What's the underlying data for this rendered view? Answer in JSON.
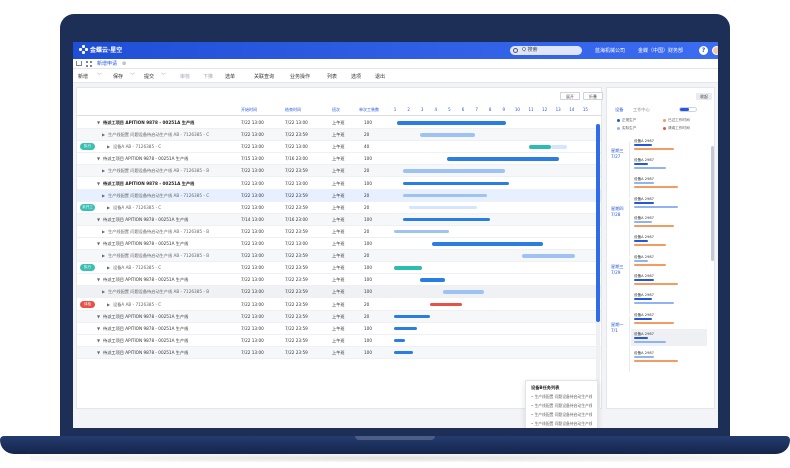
{
  "topbar": {
    "logo_text": "金蝶云·星空",
    "search_placeholder": "Q 搜索",
    "org": "蓝海机械公司",
    "user": "金蝶（中国）财务部",
    "help": "?"
  },
  "tabs": {
    "current": "新增申请"
  },
  "toolbar": {
    "items": [
      "新增",
      "保存",
      "提交",
      "审核",
      "下推",
      "选单",
      "关联查询",
      "业务操作",
      "列表",
      "选项",
      "退出"
    ]
  },
  "panel": {
    "btn_left": "展开",
    "btn_right": "折叠",
    "headers": {
      "start": "开始时间",
      "end": "结束时间",
      "shift": "班次",
      "hours": "单次工装数"
    },
    "days": [
      "1",
      "2",
      "3",
      "4",
      "5",
      "6",
      "7",
      "8",
      "9",
      "10",
      "11",
      "12",
      "13",
      "14",
      "15"
    ],
    "rows": [
      {
        "tag": "",
        "arrow": "▼",
        "name": "待派工项目 APITION 9878 - 00251A 生产线",
        "bold": true,
        "start": "7/22  13:00",
        "end": "7/22  13:00",
        "shift": "上午班",
        "hours": "100",
        "alt": false
      },
      {
        "tag": "",
        "arrow": "▶",
        "name": "生产线配置 问题设备待启动生产线 AB - 7126385 - C",
        "bold": false,
        "start": "7/22  13:00",
        "end": "7/22  23:59",
        "shift": "上午班",
        "hours": "20",
        "alt": true
      },
      {
        "tag": "执行",
        "arrow": "▶",
        "name": "设备A AB - 7126385 - C",
        "bold": false,
        "start": "7/22  13:00",
        "end": "7/22  13:00",
        "shift": "上午班",
        "hours": "40",
        "alt": false
      },
      {
        "tag": "",
        "arrow": "▼",
        "name": "待派工项目 APITION 9878 - 00251A 生产线",
        "bold": false,
        "start": "7/15  13:00",
        "end": "7/16  23:00",
        "shift": "上午班",
        "hours": "100",
        "alt": false
      },
      {
        "tag": "",
        "arrow": "▶",
        "name": "生产线配置 问题设备待启动生产线 AB - 7126385 - B",
        "bold": false,
        "start": "7/22  13:00",
        "end": "7/22  23:59",
        "shift": "上午班",
        "hours": "20",
        "alt": true
      },
      {
        "tag": "",
        "arrow": "▼",
        "name": "待派工项目 APITION 9878 - 00251A 生产线",
        "bold": true,
        "start": "7/22  13:00",
        "end": "7/22  13:00",
        "shift": "上午班",
        "hours": "100",
        "alt": false
      },
      {
        "tag": "",
        "arrow": "▶",
        "name": "生产线配置 问题设备待启动生产线 AB - 7126385 - C",
        "bold": false,
        "start": "7/22  13:00",
        "end": "7/22  23:59",
        "shift": "上午班",
        "hours": "20",
        "sel": true
      },
      {
        "tag": "未开工",
        "arrow": "▶",
        "name": "设备A AB - 7126385 - C",
        "bold": false,
        "start": "7/22  13:00",
        "end": "7/22  23:59",
        "shift": "上午班",
        "hours": "20",
        "alt": false
      },
      {
        "tag": "",
        "arrow": "▼",
        "name": "待派工项目 APITION 9878 - 00251A 生产线",
        "bold": false,
        "start": "7/14  13:00",
        "end": "7/16  23:00",
        "shift": "上午班",
        "hours": "100",
        "alt": true
      },
      {
        "tag": "",
        "arrow": "▶",
        "name": "生产线配置 问题设备待启动生产线 AB - 7126385 - B",
        "bold": false,
        "start": "7/22  13:00",
        "end": "7/22  23:59",
        "shift": "上午班",
        "hours": "20",
        "alt": false
      },
      {
        "tag": "",
        "arrow": "▼",
        "name": "待派工项目 APITION 9878 - 00251A 生产线",
        "bold": false,
        "start": "7/22  13:00",
        "end": "7/22  13:00",
        "shift": "上午班",
        "hours": "100",
        "alt": false
      },
      {
        "tag": "",
        "arrow": "▶",
        "name": "生产线配置 问题设备待启动生产线 AB - 7126385 - B",
        "bold": false,
        "start": "7/22  13:00",
        "end": "7/22  23:59",
        "shift": "上午班",
        "hours": "20",
        "alt": true
      },
      {
        "tag": "执行",
        "arrow": "▶",
        "name": "设备A AB - 7126385 - C",
        "bold": false,
        "start": "7/22  13:00",
        "end": "7/22  23:59",
        "shift": "上午班",
        "hours": "100",
        "alt": false
      },
      {
        "tag": "",
        "arrow": "▼",
        "name": "待派工项目 APITION 9878 - 00251A 生产线",
        "bold": false,
        "start": "7/22  13:00",
        "end": "7/22  23:59",
        "shift": "上午班",
        "hours": "100",
        "alt": false
      },
      {
        "tag": "",
        "arrow": "▶",
        "name": "生产线配置 问题设备待启动生产线 AB - 7126385 - B",
        "bold": false,
        "start": "7/22  13:00",
        "end": "7/22  23:59",
        "shift": "上午班",
        "hours": "100",
        "gray": true
      },
      {
        "tag": "待检",
        "arrow": "▶",
        "name": "设备A AB - 7126385 - C",
        "bold": false,
        "start": "7/22  13:00",
        "end": "7/22  23:59",
        "shift": "上午班",
        "hours": "20",
        "alt": false
      },
      {
        "tag": "",
        "arrow": "▼",
        "name": "待派工项目 APITION 9878 - 00251A 生产线",
        "bold": false,
        "start": "7/22  13:00",
        "end": "7/22  23:59",
        "shift": "上午班",
        "hours": "20",
        "alt": true
      },
      {
        "tag": "",
        "arrow": "▼",
        "name": "待派工项目 APITION 9878 - 00251A 生产线",
        "bold": false,
        "start": "7/22  13:00",
        "end": "7/22  23:59",
        "shift": "上午班",
        "hours": "100",
        "alt": false
      },
      {
        "tag": "",
        "arrow": "▼",
        "name": "待派工项目 APITION 9878 - 00251A 生产线",
        "bold": false,
        "start": "7/22  13:00",
        "end": "7/22  23:59",
        "shift": "上午班",
        "hours": "100",
        "alt": false
      },
      {
        "tag": "",
        "arrow": "▼",
        "name": "待派工项目 APITION 9878 - 00251A 生产线",
        "bold": false,
        "start": "7/22  13:00",
        "end": "7/22  23:59",
        "shift": "上午班",
        "hours": "100",
        "alt": true
      }
    ],
    "tooltip": {
      "title": "设备B任务列表",
      "items": [
        "• 生产线配置 问题设备待启动生产线 AB -",
        "• 生产线配置 问题设备待启动生产线 AB -",
        "• 生产线配置 问题设备待启动生产线 AB -",
        "• 生产线配置 问题设备待启动生产线 AB -"
      ]
    }
  },
  "gantt": {
    "colors": {
      "blue": "#2a7de1",
      "light": "#9ec3f3",
      "teal": "#2bbdb1",
      "red": "#e8514a",
      "pale": "#d3e6fb"
    },
    "bars": [
      {
        "row": 0,
        "start": 0.3,
        "len": 8.0,
        "color": "blue"
      },
      {
        "row": 1,
        "start": 2.0,
        "len": 4.0,
        "color": "light"
      },
      {
        "row": 2,
        "start": 10.0,
        "len": 1.6,
        "color": "teal"
      },
      {
        "row": 2,
        "start": 11.6,
        "len": 1.2,
        "color": "pale"
      },
      {
        "row": 3,
        "start": 4.0,
        "len": 8.2,
        "color": "blue"
      },
      {
        "row": 4,
        "start": 0.7,
        "len": 7.5,
        "color": "light"
      },
      {
        "row": 5,
        "start": 0.7,
        "len": 7.8,
        "color": "blue"
      },
      {
        "row": 6,
        "start": 0.7,
        "len": 6.2,
        "color": "light"
      },
      {
        "row": 7,
        "start": 1.2,
        "len": 5.0,
        "color": "pale"
      },
      {
        "row": 8,
        "start": 0.7,
        "len": 6.4,
        "color": "blue"
      },
      {
        "row": 9,
        "start": 0.1,
        "len": 4.0,
        "color": "light"
      },
      {
        "row": 10,
        "start": 2.9,
        "len": 8.1,
        "color": "blue"
      },
      {
        "row": 11,
        "start": 9.5,
        "len": 3.9,
        "color": "light"
      },
      {
        "row": 12,
        "start": 0.1,
        "len": 2.0,
        "color": "teal"
      },
      {
        "row": 13,
        "start": 2.0,
        "len": 1.8,
        "color": "blue"
      },
      {
        "row": 14,
        "start": 3.7,
        "len": 3.0,
        "color": "light"
      },
      {
        "row": 15,
        "start": 2.7,
        "len": 2.4,
        "color": "red"
      },
      {
        "row": 16,
        "start": 0.1,
        "len": 2.6,
        "color": "blue"
      },
      {
        "row": 17,
        "start": 0.1,
        "len": 1.7,
        "color": "blue"
      },
      {
        "row": 18,
        "start": 0.1,
        "len": 0.8,
        "color": "blue"
      },
      {
        "row": 19,
        "start": 0.1,
        "len": 1.4,
        "color": "blue"
      }
    ]
  },
  "side": {
    "btn": "收起",
    "tab1": "设备",
    "tab2": "工作中心",
    "legend": [
      {
        "label": "正常生产",
        "color": "#2456de"
      },
      {
        "label": "已过工作时间",
        "color": "#f29b63"
      },
      {
        "label": "实际生产",
        "color": "#8fb3f3"
      },
      {
        "label": "请填工作时间",
        "color": "#e8514a"
      }
    ],
    "days": [
      {
        "label": "星期三",
        "date": "7/27"
      },
      {
        "label": "星期四",
        "date": "7/28"
      },
      {
        "label": "星期三",
        "date": "7/29"
      },
      {
        "label": "星期一",
        "date": "7/1"
      }
    ],
    "item_label": "设备A 2987"
  }
}
